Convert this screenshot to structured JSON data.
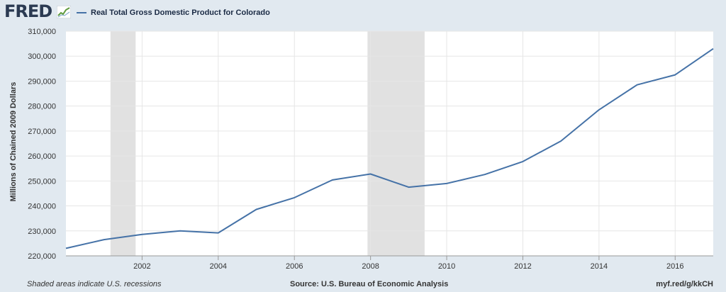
{
  "header": {
    "logo_text": "FRED",
    "logo_icon": "fred-trend-icon",
    "legend_label": "Real Total Gross Domestic Product for Colorado"
  },
  "footer": {
    "note": "Shaded areas indicate U.S. recessions",
    "source": "Source: U.S. Bureau of Economic Analysis",
    "link": "myf.red/g/kkCH"
  },
  "colors": {
    "line": "#4572a7",
    "recession": "#e1e1e1",
    "plot_bg": "#ffffff",
    "page_bg": "#e1e9f0",
    "grid": "#e6e6e6"
  },
  "chart_data": {
    "type": "line",
    "title": "",
    "xlabel": "",
    "ylabel": "Millions of Chained 2009 Dollars",
    "xlim": [
      2000,
      2017
    ],
    "ylim": [
      220000,
      310000
    ],
    "x_ticks": [
      2002,
      2004,
      2006,
      2008,
      2010,
      2012,
      2014,
      2016
    ],
    "y_ticks": [
      220000,
      230000,
      240000,
      250000,
      260000,
      270000,
      280000,
      290000,
      300000,
      310000
    ],
    "y_tick_labels": [
      "220,000",
      "230,000",
      "240,000",
      "250,000",
      "260,000",
      "270,000",
      "280,000",
      "290,000",
      "300,000",
      "310,000"
    ],
    "recessions": [
      [
        2001.17,
        2001.83
      ],
      [
        2007.92,
        2009.42
      ]
    ],
    "grid": true,
    "legend": "top-left",
    "series": [
      {
        "name": "Real Total Gross Domestic Product for Colorado",
        "x": [
          2000,
          2001,
          2002,
          2003,
          2004,
          2005,
          2006,
          2007,
          2008,
          2009,
          2010,
          2011,
          2012,
          2013,
          2014,
          2015,
          2016,
          2017
        ],
        "y": [
          223000,
          226500,
          228600,
          230000,
          229200,
          238600,
          243300,
          250400,
          252800,
          247500,
          249000,
          252600,
          257800,
          266000,
          278500,
          288500,
          292500,
          303000
        ]
      }
    ]
  }
}
